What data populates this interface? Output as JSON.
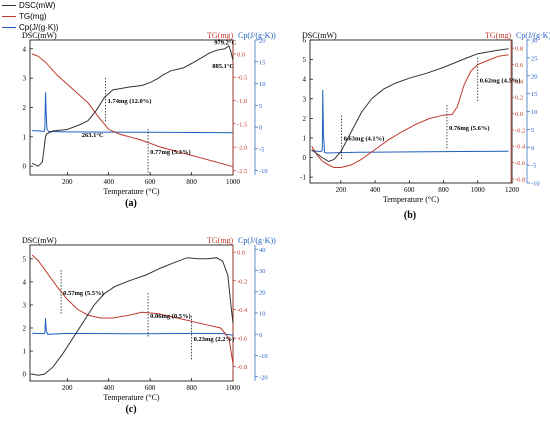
{
  "legend": {
    "items": [
      {
        "label": "DSC(mW)",
        "color": "#333333"
      },
      {
        "label": "TG(mg)",
        "color": "#c0392b"
      },
      {
        "label": "Cp(J/(g·K))",
        "color": "#1f5fbf"
      }
    ]
  },
  "colors": {
    "dsc": "#333333",
    "tg": "#c0392b",
    "cp": "#1f5fbf"
  },
  "chart_data": [
    {
      "id": "a",
      "type": "line",
      "panel_label": "(a)",
      "xlabel": "Temperature (°C)",
      "left_axis_title": "DSC(mW)",
      "right_axis_title_tg": "TG(mg)",
      "right_axis_title_cp": "Cp(J/(g·K))",
      "xlim": [
        20,
        1000
      ],
      "xticks": [
        200,
        400,
        600,
        800,
        1000
      ],
      "ylim_dsc": [
        -0.3,
        4.3
      ],
      "yticks_dsc": [
        0,
        1,
        2,
        3,
        4
      ],
      "ylim_tg": [
        -2.6,
        0.3
      ],
      "yticks_tg": [
        0.0,
        -0.5,
        -1.0,
        -1.5,
        -2.0,
        -2.5
      ],
      "ylim_cp": [
        -11,
        20
      ],
      "yticks_cp": [
        20,
        15,
        10,
        5,
        0,
        -5,
        -10
      ],
      "series": {
        "dsc": [
          [
            30,
            0.1
          ],
          [
            60,
            0.0
          ],
          [
            80,
            0.15
          ],
          [
            95,
            1.0
          ],
          [
            100,
            1.1
          ],
          [
            130,
            1.2
          ],
          [
            200,
            1.25
          ],
          [
            263,
            1.42
          ],
          [
            300,
            1.55
          ],
          [
            340,
            1.9
          ],
          [
            380,
            2.35
          ],
          [
            420,
            2.6
          ],
          [
            500,
            2.7
          ],
          [
            560,
            2.75
          ],
          [
            600,
            2.85
          ],
          [
            640,
            3.0
          ],
          [
            660,
            3.1
          ],
          [
            700,
            3.25
          ],
          [
            760,
            3.35
          ],
          [
            800,
            3.5
          ],
          [
            850,
            3.7
          ],
          [
            885,
            3.85
          ],
          [
            920,
            3.95
          ],
          [
            960,
            4.0
          ],
          [
            980,
            4.1
          ],
          [
            990,
            3.9
          ],
          [
            1000,
            3.6
          ]
        ],
        "tg": [
          [
            30,
            0.0
          ],
          [
            60,
            -0.05
          ],
          [
            100,
            -0.2
          ],
          [
            150,
            -0.45
          ],
          [
            200,
            -0.65
          ],
          [
            250,
            -0.85
          ],
          [
            300,
            -1.05
          ],
          [
            350,
            -1.35
          ],
          [
            400,
            -1.62
          ],
          [
            450,
            -1.72
          ],
          [
            500,
            -1.78
          ],
          [
            550,
            -1.84
          ],
          [
            600,
            -1.92
          ],
          [
            650,
            -2.0
          ],
          [
            700,
            -2.06
          ],
          [
            750,
            -2.12
          ],
          [
            800,
            -2.18
          ],
          [
            850,
            -2.24
          ],
          [
            900,
            -2.3
          ],
          [
            950,
            -2.36
          ],
          [
            1000,
            -2.42
          ]
        ],
        "cp": [
          [
            30,
            -0.8
          ],
          [
            70,
            -0.9
          ],
          [
            88,
            -1.0
          ],
          [
            92,
            -0.3
          ],
          [
            95,
            8.0
          ],
          [
            98,
            3.0
          ],
          [
            102,
            -0.5
          ],
          [
            110,
            -1.0
          ],
          [
            200,
            -1.1
          ],
          [
            400,
            -1.15
          ],
          [
            600,
            -1.2
          ],
          [
            800,
            -1.25
          ],
          [
            1000,
            -1.3
          ]
        ]
      },
      "annotations": [
        {
          "text": "1.74mg (12.0%)",
          "x": 385,
          "y_tg": -1.05
        },
        {
          "text": "0.77mg (5.3%)",
          "x": 590,
          "y_tg": -2.15
        },
        {
          "text": "263.1°C",
          "x": 260,
          "y_dsc": 1.0
        },
        {
          "text": "885.1°C",
          "x": 890,
          "y_dsc": 3.35
        },
        {
          "text": "979.2°C",
          "x": 900,
          "y_dsc": 4.15
        }
      ]
    },
    {
      "id": "b",
      "type": "line",
      "panel_label": "(b)",
      "xlabel": "Temperature (°C)",
      "left_axis_title": "DSC(mW)",
      "right_axis_title_tg": "TG(mg)",
      "right_axis_title_cp": "Cp(J/(g·K))",
      "xlim": [
        20,
        1200
      ],
      "xticks": [
        200,
        400,
        600,
        800,
        1000,
        1200
      ],
      "ylim_dsc": [
        -1.3,
        6.0
      ],
      "yticks_dsc": [
        -1,
        0,
        1,
        2,
        3,
        4,
        5,
        6
      ],
      "ylim_tg": [
        -0.85,
        0.9
      ],
      "yticks_tg": [
        0.8,
        0.6,
        0.4,
        0.2,
        0.0,
        -0.2,
        -0.4,
        -0.6,
        -0.8
      ],
      "ylim_cp": [
        -10,
        30
      ],
      "yticks_cp": [
        30,
        25,
        20,
        15,
        10,
        5,
        0,
        -5,
        -10
      ],
      "series": {
        "dsc": [
          [
            30,
            0.4
          ],
          [
            60,
            0.2
          ],
          [
            90,
            0.0
          ],
          [
            110,
            -0.1
          ],
          [
            130,
            -0.2
          ],
          [
            160,
            -0.1
          ],
          [
            200,
            0.3
          ],
          [
            260,
            1.3
          ],
          [
            320,
            2.3
          ],
          [
            380,
            3.0
          ],
          [
            450,
            3.5
          ],
          [
            520,
            3.8
          ],
          [
            600,
            4.05
          ],
          [
            700,
            4.3
          ],
          [
            800,
            4.6
          ],
          [
            870,
            4.85
          ],
          [
            940,
            5.1
          ],
          [
            1000,
            5.3
          ],
          [
            1100,
            5.45
          ],
          [
            1180,
            5.55
          ]
        ],
        "tg": [
          [
            30,
            -0.4
          ],
          [
            60,
            -0.5
          ],
          [
            90,
            -0.58
          ],
          [
            120,
            -0.62
          ],
          [
            160,
            -0.66
          ],
          [
            200,
            -0.66
          ],
          [
            260,
            -0.63
          ],
          [
            320,
            -0.56
          ],
          [
            400,
            -0.44
          ],
          [
            480,
            -0.32
          ],
          [
            560,
            -0.22
          ],
          [
            640,
            -0.13
          ],
          [
            720,
            -0.06
          ],
          [
            800,
            -0.02
          ],
          [
            850,
            -0.01
          ],
          [
            880,
            0.08
          ],
          [
            920,
            0.35
          ],
          [
            960,
            0.52
          ],
          [
            1000,
            0.6
          ],
          [
            1060,
            0.65
          ],
          [
            1120,
            0.7
          ],
          [
            1180,
            0.72
          ]
        ],
        "cp": [
          [
            30,
            -1.0
          ],
          [
            80,
            -1.2
          ],
          [
            92,
            -1.0
          ],
          [
            95,
            16.0
          ],
          [
            98,
            4.0
          ],
          [
            105,
            -1.5
          ],
          [
            120,
            -1.6
          ],
          [
            300,
            -1.4
          ],
          [
            600,
            -1.3
          ],
          [
            900,
            -1.2
          ],
          [
            1180,
            -1.1
          ]
        ]
      },
      "annotations": [
        {
          "text": "0.63mg (4.1%)",
          "x": 205,
          "y_tg": -0.33
        },
        {
          "text": "0.76mg (5.6%)",
          "x": 820,
          "y_tg": -0.2
        },
        {
          "text": "0.62mg (4.5%)",
          "x": 1000,
          "y_tg": 0.38
        }
      ]
    },
    {
      "id": "c",
      "type": "line",
      "panel_label": "(c)",
      "xlabel": "Temperature (°C)",
      "left_axis_title": "DSC(mW)",
      "right_axis_title_tg": "TG(mg)",
      "right_axis_title_cp": "Cp(J/(g·K))",
      "xlim": [
        20,
        1000
      ],
      "xticks": [
        200,
        400,
        600,
        800,
        1000
      ],
      "ylim_dsc": [
        -0.3,
        5.6
      ],
      "yticks_dsc": [
        0,
        1,
        2,
        3,
        4,
        5
      ],
      "ylim_tg": [
        -0.9,
        0.05
      ],
      "yticks_tg": [
        0.0,
        -0.2,
        -0.4,
        -0.6,
        -0.8
      ],
      "ylim_cp": [
        -22,
        42
      ],
      "yticks_cp": [
        40,
        30,
        20,
        10,
        0,
        -10,
        -20
      ],
      "series": {
        "dsc": [
          [
            30,
            0.0
          ],
          [
            60,
            -0.05
          ],
          [
            90,
            0.0
          ],
          [
            130,
            0.3
          ],
          [
            180,
            0.9
          ],
          [
            230,
            1.6
          ],
          [
            280,
            2.3
          ],
          [
            330,
            3.0
          ],
          [
            380,
            3.5
          ],
          [
            430,
            3.8
          ],
          [
            500,
            4.05
          ],
          [
            580,
            4.3
          ],
          [
            650,
            4.6
          ],
          [
            720,
            4.85
          ],
          [
            780,
            5.05
          ],
          [
            830,
            5.0
          ],
          [
            880,
            5.0
          ],
          [
            920,
            5.05
          ],
          [
            950,
            4.9
          ],
          [
            975,
            4.3
          ],
          [
            990,
            3.0
          ],
          [
            1000,
            2.2
          ]
        ],
        "tg": [
          [
            30,
            -0.02
          ],
          [
            60,
            -0.06
          ],
          [
            100,
            -0.14
          ],
          [
            150,
            -0.24
          ],
          [
            200,
            -0.33
          ],
          [
            250,
            -0.4
          ],
          [
            300,
            -0.44
          ],
          [
            360,
            -0.46
          ],
          [
            420,
            -0.46
          ],
          [
            500,
            -0.44
          ],
          [
            560,
            -0.42
          ],
          [
            640,
            -0.43
          ],
          [
            700,
            -0.45
          ],
          [
            760,
            -0.47
          ],
          [
            820,
            -0.49
          ],
          [
            880,
            -0.51
          ],
          [
            940,
            -0.53
          ],
          [
            980,
            -0.6
          ],
          [
            1000,
            -0.78
          ]
        ],
        "cp": [
          [
            30,
            0.5
          ],
          [
            80,
            0.3
          ],
          [
            92,
            0.5
          ],
          [
            95,
            7.5
          ],
          [
            98,
            2.0
          ],
          [
            105,
            0.0
          ],
          [
            200,
            0.4
          ],
          [
            400,
            0.3
          ],
          [
            600,
            0.2
          ],
          [
            800,
            0.4
          ],
          [
            950,
            0.3
          ],
          [
            1000,
            -0.5
          ]
        ]
      },
      "annotations": [
        {
          "text": "0.57mg (5.5%)",
          "x": 170,
          "y_tg": -0.3
        },
        {
          "text": "0.06mg (0.5%)",
          "x": 590,
          "y_tg": -0.46
        },
        {
          "text": "0.23mg (2.2%)",
          "x": 800,
          "y_tg": -0.62
        }
      ]
    }
  ]
}
